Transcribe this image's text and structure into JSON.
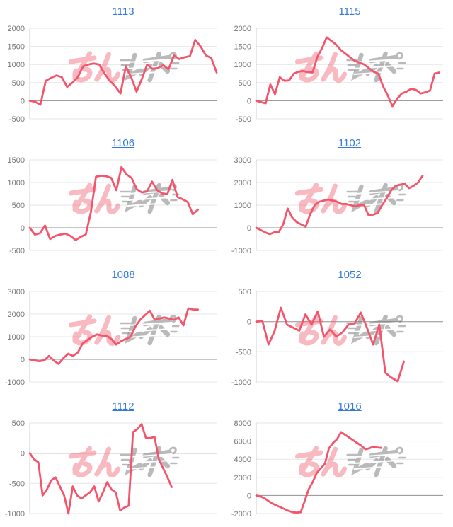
{
  "page": {
    "background": "#ffffff"
  },
  "styles": {
    "line_color": "#f3566c",
    "grid_color": "#e6e6e6",
    "zero_line_color": "#8f8f8f",
    "axis_line_color": "#cfcfcf",
    "tick_label_color": "#757575",
    "title_color": "#3579d8",
    "watermark_pink": "#ef5a6e",
    "watermark_gray": "#777777"
  },
  "watermark": {
    "name": "minrepo-logo",
    "text": "みんレポ"
  },
  "chart_data": [
    {
      "type": "line",
      "title": "1113",
      "xlabel": "",
      "ylabel": "",
      "grid": true,
      "legend": "none",
      "ylim": [
        -500,
        2000
      ],
      "yticks": [
        2000,
        1500,
        1000,
        500,
        0,
        -500
      ],
      "x_span": 1.0,
      "values": [
        0,
        -30,
        -110,
        550,
        630,
        700,
        650,
        380,
        500,
        650,
        950,
        1000,
        1030,
        1000,
        750,
        550,
        400,
        200,
        950,
        650,
        250,
        600,
        1000,
        880,
        900,
        980,
        870,
        1250,
        1150,
        1200,
        1230,
        1680,
        1500,
        1250,
        1180,
        780
      ]
    },
    {
      "type": "line",
      "title": "1115",
      "xlabel": "",
      "ylabel": "",
      "grid": true,
      "legend": "none",
      "ylim": [
        -500,
        2000
      ],
      "yticks": [
        2000,
        1500,
        1000,
        500,
        0,
        -500
      ],
      "x_span": 0.98,
      "values": [
        0,
        -40,
        -70,
        450,
        180,
        650,
        550,
        560,
        750,
        800,
        820,
        790,
        780,
        1200,
        1450,
        1750,
        1650,
        1550,
        1400,
        1300,
        1200,
        1100,
        1050,
        1000,
        900,
        800,
        750,
        400,
        150,
        -150,
        50,
        200,
        250,
        330,
        300,
        200,
        230,
        280,
        750,
        780
      ]
    },
    {
      "type": "line",
      "title": "1106",
      "xlabel": "",
      "ylabel": "",
      "grid": true,
      "legend": "none",
      "ylim": [
        -500,
        1500
      ],
      "yticks": [
        1500,
        1000,
        500,
        0,
        -500
      ],
      "x_span": 0.9,
      "values": [
        0,
        -150,
        -120,
        50,
        -250,
        -180,
        -150,
        -130,
        -180,
        -270,
        -200,
        -150,
        350,
        1130,
        1150,
        1140,
        1100,
        830,
        1340,
        1180,
        1100,
        850,
        780,
        800,
        1020,
        830,
        760,
        740,
        1060,
        680,
        630,
        570,
        300,
        400
      ]
    },
    {
      "type": "line",
      "title": "1102",
      "xlabel": "",
      "ylabel": "",
      "grid": true,
      "legend": "none",
      "ylim": [
        -1000,
        3000
      ],
      "yticks": [
        3000,
        2000,
        1000,
        0,
        -1000
      ],
      "x_span": 0.89,
      "values": [
        0,
        -100,
        -200,
        -280,
        -200,
        -180,
        150,
        850,
        450,
        250,
        150,
        50,
        600,
        1000,
        1150,
        1200,
        1250,
        1200,
        1150,
        1050,
        1050,
        1000,
        950,
        1000,
        1000,
        550,
        580,
        650,
        1000,
        1300,
        1650,
        1850,
        1900,
        1950,
        1750,
        1850,
        2000,
        2300
      ]
    },
    {
      "type": "line",
      "title": "1088",
      "xlabel": "",
      "ylabel": "",
      "grid": true,
      "legend": "none",
      "ylim": [
        -1000,
        3000
      ],
      "yticks": [
        3000,
        2000,
        1000,
        0,
        -1000
      ],
      "x_span": 0.9,
      "values": [
        0,
        -50,
        -80,
        -50,
        150,
        -50,
        -200,
        50,
        250,
        150,
        300,
        700,
        850,
        1000,
        1100,
        1050,
        1040,
        900,
        650,
        800,
        900,
        1000,
        1450,
        1750,
        1950,
        2150,
        1750,
        1800,
        1850,
        1800,
        1750,
        1850,
        1500,
        2250,
        2200,
        2200
      ]
    },
    {
      "type": "line",
      "title": "1052",
      "xlabel": "",
      "ylabel": "",
      "grid": true,
      "legend": "none",
      "ylim": [
        -1000,
        500
      ],
      "yticks": [
        500,
        0,
        -500,
        -1000
      ],
      "x_span": 0.79,
      "values": [
        0,
        10,
        -380,
        -150,
        230,
        -50,
        -100,
        -150,
        120,
        -50,
        170,
        -250,
        -130,
        -250,
        -180,
        -50,
        -30,
        150,
        -100,
        -380,
        -50,
        -850,
        -930,
        -990,
        -660
      ]
    },
    {
      "type": "line",
      "title": "1112",
      "xlabel": "",
      "ylabel": "",
      "grid": true,
      "legend": "none",
      "ylim": [
        -1000,
        500
      ],
      "yticks": [
        500,
        0,
        -500,
        -1000
      ],
      "x_span": 0.76,
      "values": [
        0,
        -100,
        -150,
        -700,
        -600,
        -450,
        -400,
        -550,
        -700,
        -1000,
        -550,
        -700,
        -750,
        -700,
        -650,
        -550,
        -800,
        -650,
        -480,
        -600,
        -650,
        -950,
        -900,
        -870,
        350,
        400,
        480,
        250,
        250,
        270,
        -100,
        -250,
        -400,
        -560
      ]
    },
    {
      "type": "line",
      "title": "1016",
      "xlabel": "",
      "ylabel": "",
      "grid": true,
      "legend": "none",
      "ylim": [
        -2000,
        8000
      ],
      "yticks": [
        8000,
        6000,
        4000,
        2000,
        0,
        -2000
      ],
      "x_span": 0.67,
      "values": [
        0,
        -100,
        -300,
        -600,
        -900,
        -1100,
        -1300,
        -1500,
        -1700,
        -1850,
        -1900,
        -1850,
        -600,
        700,
        1500,
        2500,
        3000,
        3500,
        5200,
        5800,
        6200,
        7000,
        6700,
        6400,
        6100,
        5800,
        5500,
        5100,
        5200,
        5400,
        5300,
        5250
      ]
    }
  ]
}
